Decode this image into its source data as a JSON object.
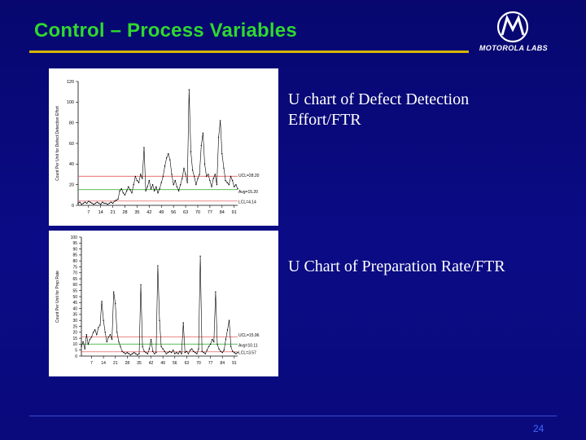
{
  "slide": {
    "title": "Control – Process Variables",
    "logo_text": "MOTOROLA LABS",
    "page_number": "24",
    "colors": {
      "background": "#0a0a7e",
      "title": "#2fd82f",
      "title_rule": "#d6b700",
      "page_number": "#3f67ff"
    }
  },
  "captions": {
    "top": [
      "U chart of Defect Detection",
      "Effort/FTR"
    ],
    "bottom": "U Chart of Preparation Rate/FTR"
  },
  "chart_data": [
    {
      "type": "line",
      "title": "",
      "ylabel": "Count Per Unit for Defect Detection Effort",
      "xlabel": "",
      "x_ticks": [
        7,
        14,
        21,
        28,
        35,
        42,
        49,
        56,
        63,
        70,
        77,
        84,
        91
      ],
      "y_ticks": [
        0,
        20,
        40,
        60,
        80,
        100,
        120
      ],
      "ylim": [
        0,
        120
      ],
      "xlim": [
        1,
        93
      ],
      "limits": {
        "ucl": 28.2,
        "avg": 15.2,
        "lcl": 4.1
      },
      "limit_labels": {
        "ucl": "UCL=28.20",
        "avg": "Avg=15.20",
        "lcl": "LCL=4.14"
      },
      "series": [
        {
          "values": [
            2,
            3,
            1,
            2,
            3,
            2,
            4,
            3,
            2,
            1,
            2,
            3,
            2,
            1,
            3,
            2,
            2,
            1,
            2,
            3,
            2,
            4,
            5,
            6,
            14,
            16,
            12,
            10,
            14,
            18,
            15,
            12,
            20,
            28,
            24,
            22,
            30,
            26,
            56,
            14,
            18,
            24,
            16,
            20,
            14,
            18,
            12,
            16,
            22,
            28,
            38,
            46,
            50,
            44,
            30,
            20,
            24,
            18,
            14,
            20,
            26,
            36,
            30,
            22,
            112,
            52,
            34,
            28,
            20,
            26,
            30,
            58,
            70,
            40,
            28,
            30,
            24,
            18,
            26,
            30,
            20,
            66,
            82,
            50,
            36,
            24,
            22,
            20,
            28,
            24,
            18,
            20,
            16
          ]
        }
      ]
    },
    {
      "type": "line",
      "title": "",
      "ylabel": "Count Per Unit for Prep Rate",
      "xlabel": "",
      "x_ticks": [
        7,
        14,
        21,
        28,
        35,
        42,
        49,
        56,
        63,
        70,
        77,
        84,
        91
      ],
      "y_ticks": [
        0,
        5,
        10,
        15,
        20,
        25,
        30,
        35,
        40,
        45,
        50,
        55,
        60,
        65,
        70,
        75,
        80,
        85,
        90,
        95,
        100
      ],
      "ylim": [
        0,
        100
      ],
      "xlim": [
        1,
        93
      ],
      "limits": {
        "ucl": 15.96,
        "avg": 10.11,
        "lcl": 3.57
      },
      "limit_labels": {
        "ucl": "UCL=15.96",
        "avg": "Avg=10.11",
        "lcl": "LCL=3.57"
      },
      "series": [
        {
          "values": [
            8,
            12,
            6,
            18,
            10,
            14,
            16,
            20,
            22,
            18,
            24,
            26,
            46,
            30,
            20,
            12,
            16,
            18,
            14,
            54,
            44,
            20,
            12,
            8,
            4,
            3,
            2,
            3,
            2,
            1,
            2,
            3,
            2,
            1,
            2,
            60,
            8,
            4,
            3,
            2,
            6,
            14,
            4,
            2,
            3,
            76,
            30,
            8,
            6,
            4,
            2,
            3,
            4,
            3,
            5,
            2,
            3,
            2,
            4,
            2,
            28,
            3,
            4,
            2,
            5,
            6,
            4,
            3,
            2,
            6,
            84,
            4,
            3,
            2,
            5,
            8,
            10,
            14,
            12,
            54,
            10,
            6,
            4,
            3,
            5,
            14,
            22,
            30,
            8,
            4,
            3,
            2,
            3
          ]
        }
      ]
    }
  ]
}
